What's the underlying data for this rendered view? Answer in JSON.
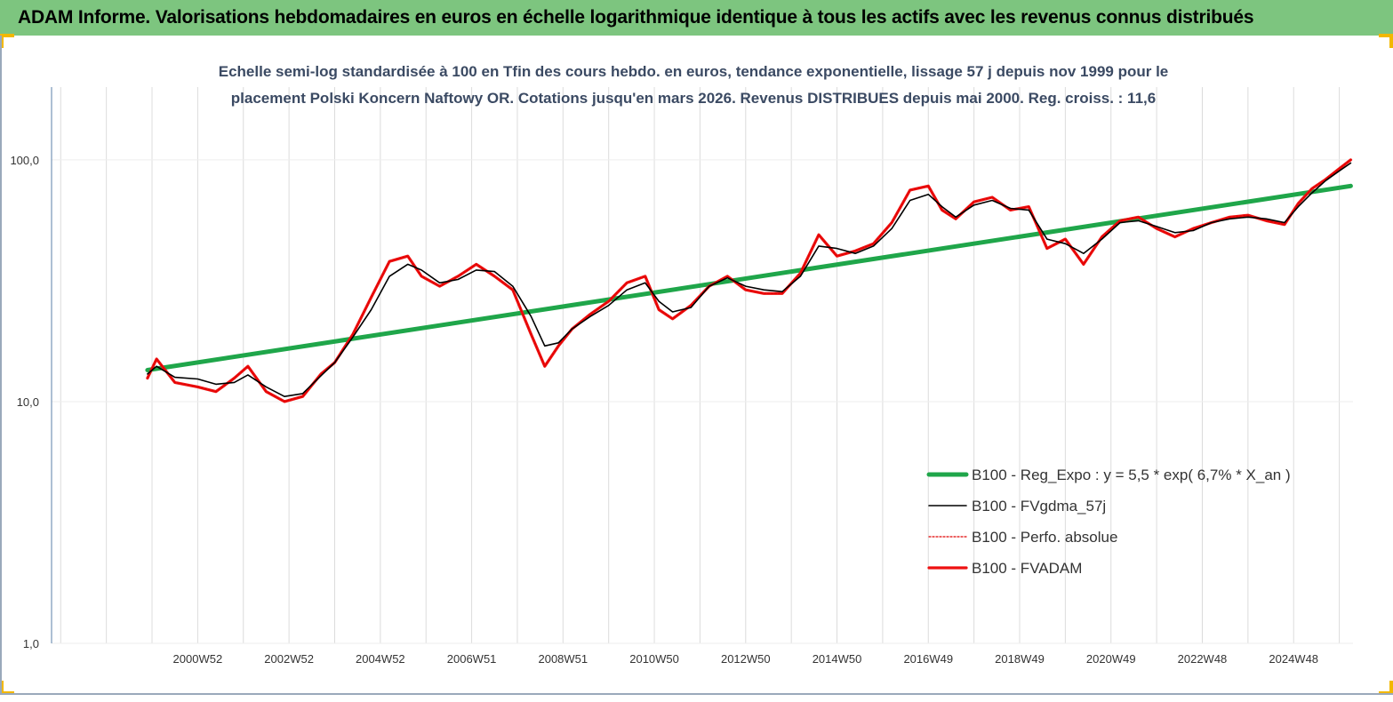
{
  "header": {
    "title": "ADAM Informe. Valorisations hebdomadaires en euros en échelle logarithmique identique à tous les actifs avec les revenus connus distribués"
  },
  "colors": {
    "banner": "#7dc57f",
    "corner_marks": "#f2b800",
    "reg_expo": "#1fa64a",
    "fvgdma": "#000000",
    "perfo": "#e00000",
    "fvadam": "#ee1111",
    "grid": "#dcdcdc",
    "axis": "#5b7fa8",
    "tick_text": "#333333"
  },
  "chart_data": {
    "type": "line",
    "title_lines": [
      "Echelle semi-log standardisée à 100 en Tfin des cours hebdo. en euros, tendance exponentielle, lissage 57 j depuis nov 1999 pour le",
      "placement Polski Koncern Naftowy OR. Cotations jusqu'en mars 2026. Revenus DISTRIBUES depuis mai 2000. Reg. croiss. : 11,6"
    ],
    "y_scale": "log",
    "ylim": [
      1,
      200
    ],
    "y_ticks": [
      1,
      10,
      100
    ],
    "y_tick_labels": [
      "1,0",
      "10,0",
      "100,0"
    ],
    "xlim": [
      1997.8,
      2026.3
    ],
    "x_tick_positions": [
      2001.0,
      2003.0,
      2005.0,
      2007.0,
      2009.0,
      2011.0,
      2013.0,
      2015.0,
      2017.0,
      2019.0,
      2021.0,
      2023.0,
      2025.0
    ],
    "x_tick_labels": [
      "2000W52",
      "2002W52",
      "2004W52",
      "2006W51",
      "2008W51",
      "2010W50",
      "2012W50",
      "2014W50",
      "2016W49",
      "2018W49",
      "2020W49",
      "2022W48",
      "2024W48"
    ],
    "grid": "vertical",
    "legend_position": "lower-right",
    "series": [
      {
        "name": "B100 - Reg_Expo : y = 5,5 * exp( 6,7% *  X_an )",
        "key": "reg",
        "style": "thick",
        "x": [
          1999.9,
          2026.25
        ],
        "y": [
          13.5,
          78
        ]
      },
      {
        "name": "B100 - FVgdma_57j",
        "key": "fvgdma",
        "style": "thin",
        "x": [
          1999.9,
          2000.1,
          2000.5,
          2001.0,
          2001.4,
          2001.8,
          2002.1,
          2002.5,
          2002.9,
          2003.3,
          2003.7,
          2004.0,
          2004.4,
          2004.8,
          2005.2,
          2005.6,
          2005.9,
          2006.3,
          2006.7,
          2007.1,
          2007.5,
          2007.9,
          2008.3,
          2008.6,
          2008.9,
          2009.2,
          2009.6,
          2010.0,
          2010.4,
          2010.8,
          2011.1,
          2011.4,
          2011.8,
          2012.2,
          2012.6,
          2013.0,
          2013.4,
          2013.8,
          2014.2,
          2014.6,
          2015.0,
          2015.4,
          2015.8,
          2016.2,
          2016.6,
          2017.0,
          2017.3,
          2017.6,
          2018.0,
          2018.4,
          2018.8,
          2019.2,
          2019.6,
          2020.0,
          2020.4,
          2020.8,
          2021.2,
          2021.6,
          2022.0,
          2022.4,
          2022.8,
          2023.2,
          2023.6,
          2024.0,
          2024.4,
          2024.8,
          2025.1,
          2025.4,
          2025.7,
          2026.0,
          2026.25
        ],
        "y": [
          13.0,
          14.0,
          12.6,
          12.4,
          11.8,
          12.0,
          12.9,
          11.5,
          10.5,
          10.8,
          12.8,
          14.5,
          18.5,
          24.0,
          33.0,
          37.0,
          35.0,
          31.0,
          32.0,
          35.0,
          34.5,
          30.0,
          22.5,
          17.0,
          17.5,
          20.0,
          22.5,
          25.0,
          29.0,
          31.0,
          26.0,
          23.5,
          24.5,
          30.0,
          32.5,
          30.0,
          29.0,
          28.5,
          33.0,
          44.0,
          43.0,
          41.0,
          44.0,
          52.0,
          68.0,
          72.0,
          64.0,
          58.0,
          65.0,
          68.0,
          63.0,
          62.0,
          47.0,
          45.0,
          41.0,
          47.0,
          55.0,
          56.0,
          53.0,
          50.0,
          51.0,
          55.0,
          57.0,
          58.0,
          57.0,
          55.0,
          64.0,
          73.0,
          82.0,
          90.0,
          97.0
        ]
      },
      {
        "name": "B100 - Perfo. absolue",
        "key": "perfo",
        "style": "dotted",
        "x": [
          1999.9,
          2000.1,
          2000.5,
          2001.0,
          2001.4,
          2001.8,
          2002.1,
          2002.5,
          2002.9,
          2003.3,
          2003.7,
          2004.0,
          2004.4,
          2004.8,
          2005.2,
          2005.6,
          2005.9,
          2006.3,
          2006.7,
          2007.1,
          2007.5,
          2007.9,
          2008.3,
          2008.6,
          2008.9,
          2009.2,
          2009.6,
          2010.0,
          2010.4,
          2010.8,
          2011.1,
          2011.4,
          2011.8,
          2012.2,
          2012.6,
          2013.0,
          2013.4,
          2013.8,
          2014.2,
          2014.6,
          2015.0,
          2015.4,
          2015.8,
          2016.2,
          2016.6,
          2017.0,
          2017.3,
          2017.6,
          2018.0,
          2018.4,
          2018.8,
          2019.2,
          2019.6,
          2020.0,
          2020.4,
          2020.8,
          2021.2,
          2021.6,
          2022.0,
          2022.4,
          2022.8,
          2023.2,
          2023.6,
          2024.0,
          2024.4,
          2024.8,
          2025.1,
          2025.4,
          2025.7,
          2026.0,
          2026.25
        ],
        "y": [
          12.5,
          15.0,
          12.0,
          11.5,
          11.0,
          12.5,
          14.0,
          11.0,
          10.0,
          10.5,
          13.0,
          14.5,
          19.0,
          27.0,
          38.0,
          40.0,
          33.0,
          30.0,
          33.0,
          37.0,
          33.0,
          29.0,
          19.0,
          14.0,
          17.0,
          20.0,
          23.0,
          26.0,
          31.0,
          33.0,
          24.0,
          22.0,
          25.0,
          30.0,
          33.0,
          29.0,
          28.0,
          28.0,
          34.0,
          49.0,
          40.0,
          42.0,
          45.0,
          55.0,
          75.0,
          78.0,
          62.0,
          57.0,
          67.0,
          70.0,
          62.0,
          64.0,
          43.0,
          47.0,
          37.0,
          48.0,
          56.0,
          58.0,
          52.0,
          48.0,
          52.0,
          55.0,
          58.0,
          59.0,
          56.0,
          54.0,
          66.0,
          76.0,
          83.0,
          92.0,
          100.0
        ]
      },
      {
        "name": "B100 - FVADAM",
        "key": "fvadam",
        "style": "thick",
        "x": [
          1999.9,
          2000.1,
          2000.5,
          2001.0,
          2001.4,
          2001.8,
          2002.1,
          2002.5,
          2002.9,
          2003.3,
          2003.7,
          2004.0,
          2004.4,
          2004.8,
          2005.2,
          2005.6,
          2005.9,
          2006.3,
          2006.7,
          2007.1,
          2007.5,
          2007.9,
          2008.3,
          2008.6,
          2008.9,
          2009.2,
          2009.6,
          2010.0,
          2010.4,
          2010.8,
          2011.1,
          2011.4,
          2011.8,
          2012.2,
          2012.6,
          2013.0,
          2013.4,
          2013.8,
          2014.2,
          2014.6,
          2015.0,
          2015.4,
          2015.8,
          2016.2,
          2016.6,
          2017.0,
          2017.3,
          2017.6,
          2018.0,
          2018.4,
          2018.8,
          2019.2,
          2019.6,
          2020.0,
          2020.4,
          2020.8,
          2021.2,
          2021.6,
          2022.0,
          2022.4,
          2022.8,
          2023.2,
          2023.6,
          2024.0,
          2024.4,
          2024.8,
          2025.1,
          2025.4,
          2025.7,
          2026.0,
          2026.25
        ],
        "y": [
          12.5,
          15.0,
          12.0,
          11.5,
          11.0,
          12.5,
          14.0,
          11.0,
          10.0,
          10.5,
          13.0,
          14.5,
          19.0,
          27.0,
          38.0,
          40.0,
          33.0,
          30.0,
          33.0,
          37.0,
          33.0,
          29.0,
          19.0,
          14.0,
          17.0,
          20.0,
          23.0,
          26.0,
          31.0,
          33.0,
          24.0,
          22.0,
          25.0,
          30.0,
          33.0,
          29.0,
          28.0,
          28.0,
          34.0,
          49.0,
          40.0,
          42.0,
          45.0,
          55.0,
          75.0,
          78.0,
          62.0,
          57.0,
          67.0,
          70.0,
          62.0,
          64.0,
          43.0,
          47.0,
          37.0,
          48.0,
          56.0,
          58.0,
          52.0,
          48.0,
          52.0,
          55.0,
          58.0,
          59.0,
          56.0,
          54.0,
          66.0,
          76.0,
          83.0,
          92.0,
          100.0
        ]
      }
    ]
  }
}
